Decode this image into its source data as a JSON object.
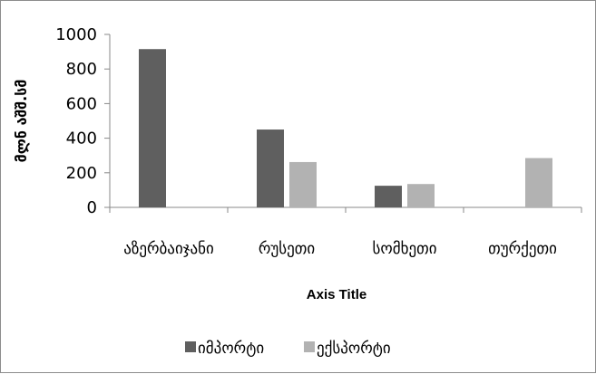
{
  "chart_data": {
    "type": "bar",
    "title": "",
    "categories": [
      "აზერბაიჯანი",
      "რუსეთი",
      "სომხეთი",
      "თურქეთი"
    ],
    "series": [
      {
        "name": "იმპორტი",
        "color": "#5f5f5f",
        "values": [
          915,
          450,
          125,
          null
        ]
      },
      {
        "name": "ექსპორტი",
        "color": "#b2b2b2",
        "values": [
          null,
          262,
          135,
          285
        ]
      }
    ],
    "ylabel": "მლნ აშშ.სმ",
    "xlabel": "Axis Title",
    "ylim": [
      0,
      1000
    ],
    "yticks": [
      0,
      200,
      400,
      600,
      800,
      1000
    ],
    "grid": false,
    "legend_position": "bottom"
  }
}
